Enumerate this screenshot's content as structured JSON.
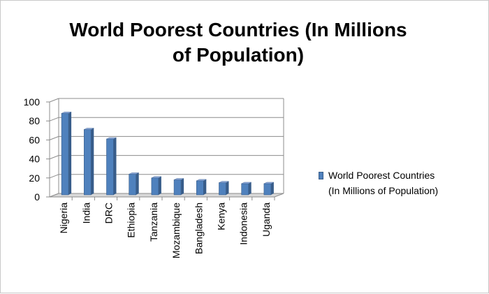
{
  "chart_data": {
    "type": "bar",
    "title": "World Poorest Countries (In Millions of Population)",
    "title_lines": [
      "World Poorest Countries (In Millions",
      "of Population)"
    ],
    "categories": [
      "Nigeria",
      "India",
      "DRC",
      "Ethiopia",
      "Tanzania",
      "Mozambique",
      "Bangladesh",
      "Kenya",
      "Indonesia",
      "Uganda"
    ],
    "series": [
      {
        "name": "World Poorest Countries (In Millions of Population)",
        "values": [
          88,
          71,
          61,
          24,
          20,
          18,
          17,
          15,
          14,
          14
        ]
      }
    ],
    "legend_lines": [
      "World Poorest Countries",
      "(In Millions of Population)"
    ],
    "ylim": [
      0,
      100
    ],
    "yticks": [
      "0",
      "20",
      "40",
      "60",
      "80",
      "100"
    ],
    "xlabel": "",
    "ylabel": "",
    "grid": true,
    "legend_position": "right",
    "three_d": true,
    "colors": {
      "bar": "#4f81bd",
      "bar_dark": "#385d8a",
      "bar_top": "#8eaadb",
      "grid": "#8c8c8c",
      "floor": "#d9d9d9"
    }
  }
}
